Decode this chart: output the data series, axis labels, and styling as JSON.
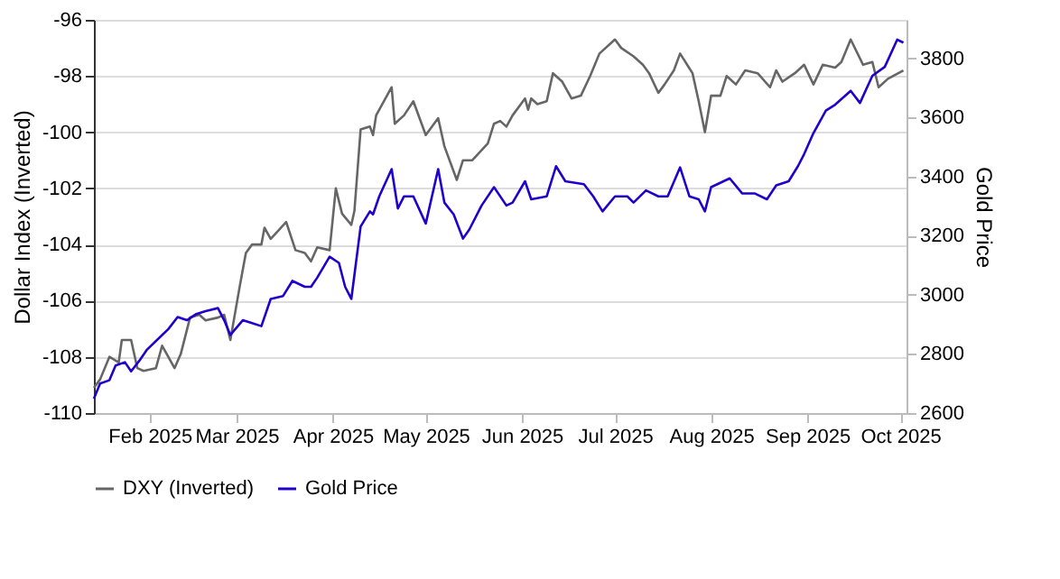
{
  "chart_data": {
    "type": "line",
    "ylabel": "Dollar Index (Inverted)",
    "y2label": "Gold Price",
    "legend": "bottom",
    "grid": "y",
    "xlim": [
      "2025-01-14",
      "2025-10-03"
    ],
    "xticks": [
      {
        "value": "2025-02-01",
        "label": "Feb 2025"
      },
      {
        "value": "2025-03-01",
        "label": "Mar 2025"
      },
      {
        "value": "2025-04-01",
        "label": "Apr 2025"
      },
      {
        "value": "2025-05-01",
        "label": "May 2025"
      },
      {
        "value": "2025-06-01",
        "label": "Jun 2025"
      },
      {
        "value": "2025-07-01",
        "label": "Jul 2025"
      },
      {
        "value": "2025-08-01",
        "label": "Aug 2025"
      },
      {
        "value": "2025-09-01",
        "label": "Sep 2025"
      },
      {
        "value": "2025-10-01",
        "label": "Oct 2025"
      }
    ],
    "ylim": [
      -110,
      -96
    ],
    "yticks": [
      -110,
      -108,
      -106,
      -104,
      -102,
      -100,
      -98,
      -96
    ],
    "y2lim": [
      2600,
      3930
    ],
    "y2ticks": [
      2600,
      2800,
      3000,
      3200,
      3400,
      3600,
      3800
    ],
    "series": [
      {
        "name": "DXY (Inverted)",
        "color": "#666666",
        "x": [
          "2025-01-14",
          "2025-01-16",
          "2025-01-19",
          "2025-01-22",
          "2025-01-23",
          "2025-01-26",
          "2025-01-28",
          "2025-01-30",
          "2025-02-03",
          "2025-02-05",
          "2025-02-09",
          "2025-02-11",
          "2025-02-14",
          "2025-02-17",
          "2025-02-19",
          "2025-02-23",
          "2025-02-25",
          "2025-02-27",
          "2025-03-02",
          "2025-03-04",
          "2025-03-06",
          "2025-03-09",
          "2025-03-10",
          "2025-03-12",
          "2025-03-17",
          "2025-03-20",
          "2025-03-23",
          "2025-03-25",
          "2025-03-27",
          "2025-03-31",
          "2025-04-02",
          "2025-04-04",
          "2025-04-07",
          "2025-04-08",
          "2025-04-10",
          "2025-04-13",
          "2025-04-14",
          "2025-04-15",
          "2025-04-20",
          "2025-04-21",
          "2025-04-24",
          "2025-04-27",
          "2025-05-01",
          "2025-05-05",
          "2025-05-07",
          "2025-05-11",
          "2025-05-13",
          "2025-05-16",
          "2025-05-21",
          "2025-05-23",
          "2025-05-25",
          "2025-05-27",
          "2025-05-29",
          "2025-06-02",
          "2025-06-03",
          "2025-06-04",
          "2025-06-06",
          "2025-06-09",
          "2025-06-11",
          "2025-06-14",
          "2025-06-17",
          "2025-06-20",
          "2025-06-23",
          "2025-06-26",
          "2025-07-01",
          "2025-07-03",
          "2025-07-07",
          "2025-07-10",
          "2025-07-12",
          "2025-07-15",
          "2025-07-17",
          "2025-07-20",
          "2025-07-22",
          "2025-07-26",
          "2025-07-28",
          "2025-07-30",
          "2025-08-01",
          "2025-08-04",
          "2025-08-06",
          "2025-08-09",
          "2025-08-12",
          "2025-08-16",
          "2025-08-20",
          "2025-08-22",
          "2025-08-24",
          "2025-08-28",
          "2025-08-31",
          "2025-09-03",
          "2025-09-06",
          "2025-09-10",
          "2025-09-12",
          "2025-09-15",
          "2025-09-19",
          "2025-09-22",
          "2025-09-24",
          "2025-09-27",
          "2025-10-02"
        ],
        "values": [
          -109.1,
          -108.8,
          -108.0,
          -108.2,
          -107.4,
          -107.4,
          -108.4,
          -108.5,
          -108.4,
          -107.6,
          -108.4,
          -107.9,
          -106.6,
          -106.5,
          -106.7,
          -106.6,
          -106.5,
          -107.4,
          -105.5,
          -104.3,
          -104.0,
          -104.0,
          -103.4,
          -103.8,
          -103.2,
          -104.2,
          -104.3,
          -104.6,
          -104.1,
          -104.2,
          -102.0,
          -102.9,
          -103.3,
          -102.8,
          -99.9,
          -99.8,
          -100.1,
          -99.4,
          -98.4,
          -99.7,
          -99.4,
          -98.9,
          -100.1,
          -99.5,
          -100.5,
          -101.7,
          -101.0,
          -101.0,
          -100.4,
          -99.7,
          -99.6,
          -99.8,
          -99.4,
          -98.8,
          -99.2,
          -98.8,
          -99.0,
          -98.9,
          -97.9,
          -98.2,
          -98.8,
          -98.7,
          -98.0,
          -97.2,
          -96.7,
          -97.0,
          -97.3,
          -97.6,
          -97.9,
          -98.6,
          -98.3,
          -97.8,
          -97.2,
          -97.9,
          -98.9,
          -100.0,
          -98.7,
          -98.7,
          -98.0,
          -98.3,
          -97.8,
          -97.9,
          -98.4,
          -97.8,
          -98.2,
          -97.9,
          -97.6,
          -98.3,
          -97.6,
          -97.7,
          -97.5,
          -96.7,
          -97.6,
          -97.5,
          -98.4,
          -98.1,
          -97.8
        ]
      },
      {
        "name": "Gold Price",
        "axis": "y2",
        "color": "#2200cc",
        "x": [
          "2025-01-14",
          "2025-01-16",
          "2025-01-19",
          "2025-01-21",
          "2025-01-24",
          "2025-01-26",
          "2025-01-29",
          "2025-01-31",
          "2025-02-05",
          "2025-02-07",
          "2025-02-10",
          "2025-02-13",
          "2025-02-16",
          "2025-02-19",
          "2025-02-23",
          "2025-02-25",
          "2025-02-27",
          "2025-03-03",
          "2025-03-06",
          "2025-03-09",
          "2025-03-12",
          "2025-03-16",
          "2025-03-19",
          "2025-03-23",
          "2025-03-25",
          "2025-03-27",
          "2025-03-31",
          "2025-04-03",
          "2025-04-05",
          "2025-04-07",
          "2025-04-10",
          "2025-04-13",
          "2025-04-14",
          "2025-04-16",
          "2025-04-20",
          "2025-04-22",
          "2025-04-24",
          "2025-04-27",
          "2025-05-01",
          "2025-05-05",
          "2025-05-07",
          "2025-05-10",
          "2025-05-13",
          "2025-05-15",
          "2025-05-19",
          "2025-05-23",
          "2025-05-27",
          "2025-05-29",
          "2025-06-02",
          "2025-06-04",
          "2025-06-09",
          "2025-06-12",
          "2025-06-15",
          "2025-06-21",
          "2025-06-24",
          "2025-06-27",
          "2025-07-01",
          "2025-07-05",
          "2025-07-07",
          "2025-07-11",
          "2025-07-15",
          "2025-07-18",
          "2025-07-22",
          "2025-07-25",
          "2025-07-28",
          "2025-07-30",
          "2025-08-01",
          "2025-08-07",
          "2025-08-11",
          "2025-08-15",
          "2025-08-19",
          "2025-08-22",
          "2025-08-26",
          "2025-08-29",
          "2025-08-31",
          "2025-09-03",
          "2025-09-07",
          "2025-09-10",
          "2025-09-15",
          "2025-09-18",
          "2025-09-22",
          "2025-09-26",
          "2025-09-30",
          "2025-10-02"
        ],
        "values": [
          2649,
          2700,
          2711,
          2761,
          2772,
          2741,
          2782,
          2813,
          2864,
          2884,
          2925,
          2914,
          2935,
          2945,
          2955,
          2914,
          2864,
          2914,
          2904,
          2894,
          2986,
          2996,
          3047,
          3027,
          3027,
          3058,
          3129,
          3108,
          3027,
          2986,
          3231,
          3282,
          3272,
          3333,
          3425,
          3292,
          3333,
          3333,
          3241,
          3425,
          3312,
          3272,
          3190,
          3220,
          3302,
          3364,
          3302,
          3312,
          3384,
          3323,
          3333,
          3435,
          3384,
          3374,
          3333,
          3282,
          3333,
          3333,
          3312,
          3353,
          3333,
          3333,
          3431,
          3333,
          3323,
          3282,
          3364,
          3394,
          3343,
          3343,
          3323,
          3370,
          3384,
          3435,
          3476,
          3547,
          3623,
          3643,
          3690,
          3649,
          3741,
          3771,
          3863,
          3853
        ]
      }
    ]
  }
}
